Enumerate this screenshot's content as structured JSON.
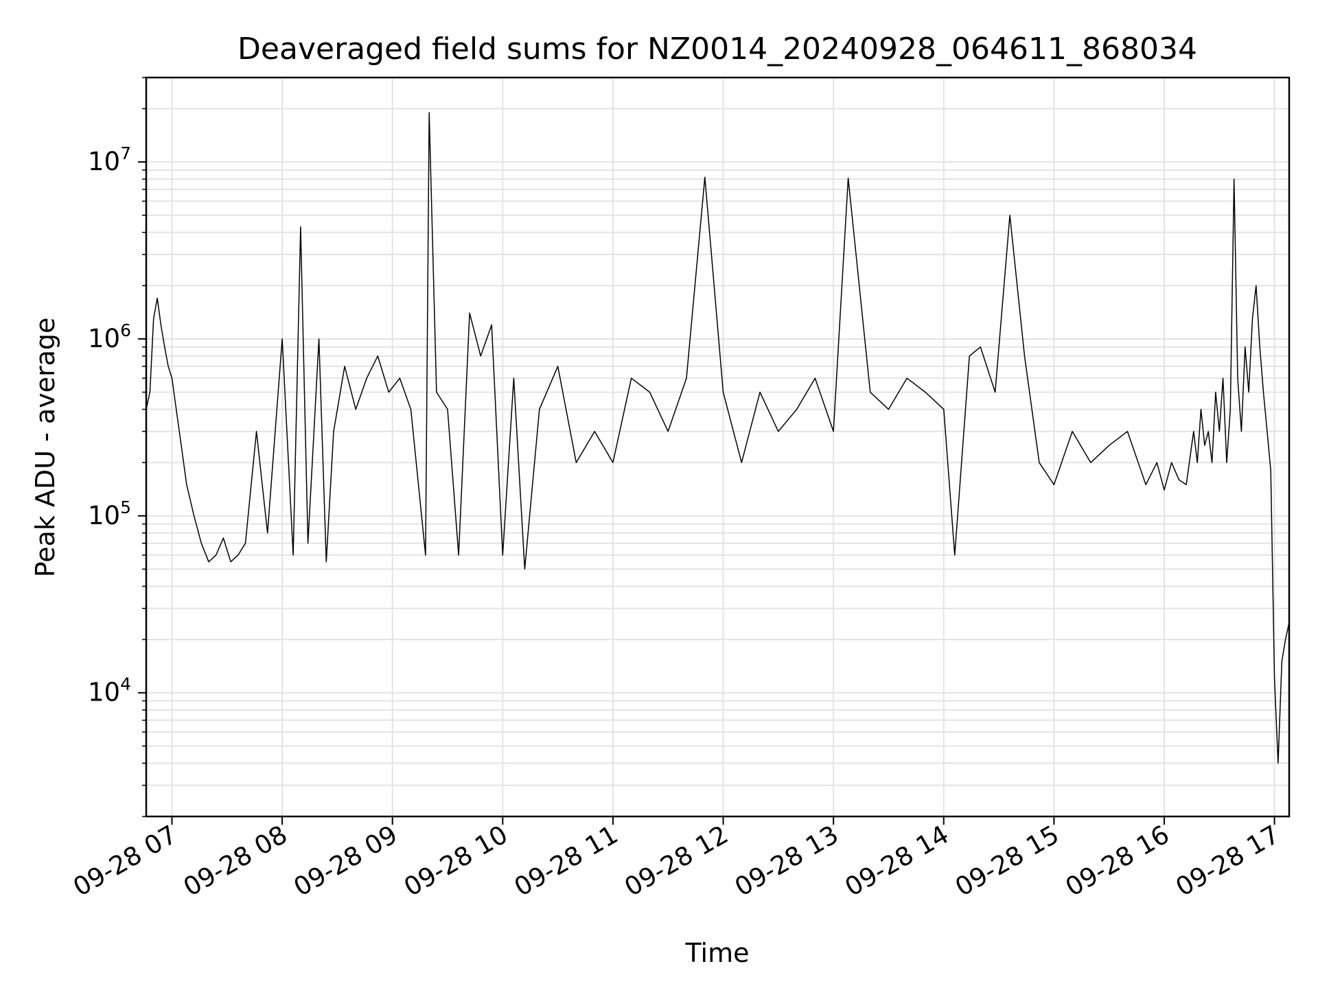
{
  "chart_data": {
    "type": "line",
    "title": "Deaveraged field sums for NZ0014_20240928_064611_868034",
    "xlabel": "Time",
    "ylabel": "Peak ADU - average",
    "yscale": "log",
    "ylim": [
      2000,
      30000000
    ],
    "xlim": [
      "2024-09-28 06:46",
      "2024-09-28 17:08"
    ],
    "grid": true,
    "line_color": "#000000",
    "x_ticks": [
      "09-28 07",
      "09-28 08",
      "09-28 09",
      "09-28 10",
      "09-28 11",
      "09-28 12",
      "09-28 13",
      "09-28 14",
      "09-28 15",
      "09-28 16",
      "09-28 17"
    ],
    "x_tick_values": [
      "2024-09-28 07:00",
      "2024-09-28 08:00",
      "2024-09-28 09:00",
      "2024-09-28 10:00",
      "2024-09-28 11:00",
      "2024-09-28 12:00",
      "2024-09-28 13:00",
      "2024-09-28 14:00",
      "2024-09-28 15:00",
      "2024-09-28 16:00",
      "2024-09-28 17:00"
    ],
    "y_ticks": [
      {
        "base": "10",
        "exp": "4",
        "value": 10000
      },
      {
        "base": "10",
        "exp": "5",
        "value": 100000
      },
      {
        "base": "10",
        "exp": "6",
        "value": 1000000
      },
      {
        "base": "10",
        "exp": "7",
        "value": 10000000
      }
    ],
    "series": [
      {
        "x": [
          "2024-09-28 06:46",
          "2024-09-28 06:48",
          "2024-09-28 06:50",
          "2024-09-28 06:52",
          "2024-09-28 06:54",
          "2024-09-28 06:56",
          "2024-09-28 06:58",
          "2024-09-28 07:00",
          "2024-09-28 07:04",
          "2024-09-28 07:08",
          "2024-09-28 07:12",
          "2024-09-28 07:16",
          "2024-09-28 07:20",
          "2024-09-28 07:24",
          "2024-09-28 07:28",
          "2024-09-28 07:32",
          "2024-09-28 07:36",
          "2024-09-28 07:40",
          "2024-09-28 07:46",
          "2024-09-28 07:52",
          "2024-09-28 08:00",
          "2024-09-28 08:06",
          "2024-09-28 08:10",
          "2024-09-28 08:14",
          "2024-09-28 08:20",
          "2024-09-28 08:24",
          "2024-09-28 08:28",
          "2024-09-28 08:34",
          "2024-09-28 08:40",
          "2024-09-28 08:46",
          "2024-09-28 08:52",
          "2024-09-28 08:58",
          "2024-09-28 09:04",
          "2024-09-28 09:10",
          "2024-09-28 09:18",
          "2024-09-28 09:20",
          "2024-09-28 09:24",
          "2024-09-28 09:30",
          "2024-09-28 09:36",
          "2024-09-28 09:42",
          "2024-09-28 09:48",
          "2024-09-28 09:54",
          "2024-09-28 10:00",
          "2024-09-28 10:06",
          "2024-09-28 10:12",
          "2024-09-28 10:20",
          "2024-09-28 10:30",
          "2024-09-28 10:40",
          "2024-09-28 10:50",
          "2024-09-28 11:00",
          "2024-09-28 11:10",
          "2024-09-28 11:20",
          "2024-09-28 11:30",
          "2024-09-28 11:40",
          "2024-09-28 11:50",
          "2024-09-28 12:00",
          "2024-09-28 12:10",
          "2024-09-28 12:20",
          "2024-09-28 12:30",
          "2024-09-28 12:40",
          "2024-09-28 12:50",
          "2024-09-28 13:00",
          "2024-09-28 13:08",
          "2024-09-28 13:20",
          "2024-09-28 13:30",
          "2024-09-28 13:40",
          "2024-09-28 13:50",
          "2024-09-28 14:00",
          "2024-09-28 14:06",
          "2024-09-28 14:14",
          "2024-09-28 14:20",
          "2024-09-28 14:28",
          "2024-09-28 14:36",
          "2024-09-28 14:44",
          "2024-09-28 14:52",
          "2024-09-28 15:00",
          "2024-09-28 15:10",
          "2024-09-28 15:20",
          "2024-09-28 15:30",
          "2024-09-28 15:40",
          "2024-09-28 15:50",
          "2024-09-28 15:56",
          "2024-09-28 16:00",
          "2024-09-28 16:04",
          "2024-09-28 16:08",
          "2024-09-28 16:12",
          "2024-09-28 16:16",
          "2024-09-28 16:18",
          "2024-09-28 16:20",
          "2024-09-28 16:22",
          "2024-09-28 16:24",
          "2024-09-28 16:26",
          "2024-09-28 16:28",
          "2024-09-28 16:30",
          "2024-09-28 16:32",
          "2024-09-28 16:34",
          "2024-09-28 16:36",
          "2024-09-28 16:38",
          "2024-09-28 16:40",
          "2024-09-28 16:42",
          "2024-09-28 16:44",
          "2024-09-28 16:46",
          "2024-09-28 16:48",
          "2024-09-28 16:50",
          "2024-09-28 16:52",
          "2024-09-28 16:54",
          "2024-09-28 16:56",
          "2024-09-28 16:58",
          "2024-09-28 17:00",
          "2024-09-28 17:02",
          "2024-09-28 17:04",
          "2024-09-28 17:06",
          "2024-09-28 17:08"
        ],
        "y": [
          400000,
          500000,
          1300000,
          1700000,
          1200000,
          900000,
          700000,
          600000,
          300000,
          150000,
          100000,
          70000,
          55000,
          60000,
          75000,
          55000,
          60000,
          70000,
          300000,
          80000,
          1000000,
          60000,
          4300000,
          70000,
          1000000,
          55000,
          300000,
          700000,
          400000,
          600000,
          800000,
          500000,
          600000,
          400000,
          60000,
          19000000,
          500000,
          400000,
          60000,
          1400000,
          800000,
          1200000,
          60000,
          600000,
          50000,
          400000,
          700000,
          200000,
          300000,
          200000,
          600000,
          500000,
          300000,
          600000,
          8200000,
          500000,
          200000,
          500000,
          300000,
          400000,
          600000,
          300000,
          8100000,
          500000,
          400000,
          600000,
          500000,
          400000,
          60000,
          800000,
          900000,
          500000,
          5000000,
          800000,
          200000,
          150000,
          300000,
          200000,
          250000,
          300000,
          150000,
          200000,
          140000,
          200000,
          160000,
          150000,
          300000,
          200000,
          400000,
          250000,
          300000,
          200000,
          500000,
          300000,
          600000,
          200000,
          400000,
          8000000,
          600000,
          300000,
          900000,
          500000,
          1300000,
          2000000,
          900000,
          500000,
          300000,
          180000,
          12000,
          4000,
          15000,
          20000,
          25000
        ]
      }
    ]
  }
}
